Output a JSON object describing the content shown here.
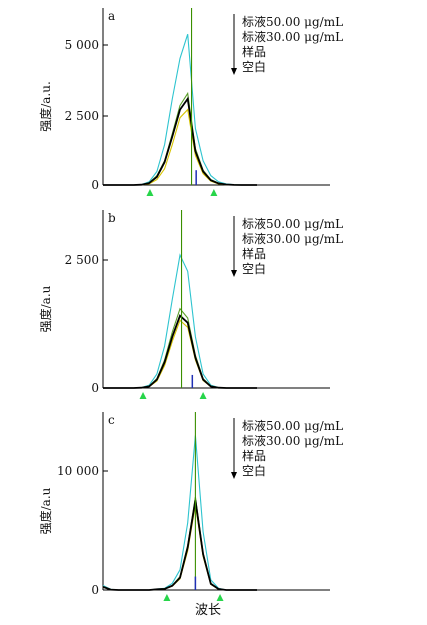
{
  "colors": {
    "standard_50": "#2ec4cf",
    "standard_30": "#5b9e2a",
    "sample": "#000000",
    "blank": "#d6c400",
    "peak_line": "#3a8f00",
    "peak_tick": "#1f2fb5",
    "marker": "#27d54a"
  },
  "xlabel": "波长",
  "chart_data": [
    {
      "type": "line",
      "panel_label": "a",
      "ylabel": "强度/a.u.",
      "yticks": [
        "5 000",
        "2 500",
        "0"
      ],
      "ylim": [
        0,
        6200
      ],
      "legend": {
        "entries": [
          "标液50.00 μg/mL",
          "标液30.00 μg/mL",
          "样品",
          "空白"
        ],
        "placement": "top-right",
        "arrow": "down"
      },
      "x": [
        0,
        1,
        2,
        3,
        4,
        5,
        6,
        7,
        8,
        9,
        10,
        11,
        12,
        13,
        14,
        15,
        16,
        17,
        18,
        19,
        20
      ],
      "series": [
        {
          "key": "standard_50",
          "values": [
            0,
            0,
            0,
            0,
            0,
            20,
            120,
            500,
            1500,
            3200,
            4700,
            5600,
            2100,
            900,
            350,
            120,
            40,
            10,
            0,
            0,
            0
          ]
        },
        {
          "key": "standard_30",
          "values": [
            0,
            0,
            0,
            0,
            0,
            15,
            80,
            350,
            900,
            1900,
            2950,
            3400,
            1350,
            550,
            200,
            70,
            20,
            5,
            0,
            0,
            0
          ]
        },
        {
          "key": "sample",
          "values": [
            0,
            0,
            0,
            0,
            0,
            12,
            70,
            300,
            850,
            1800,
            2800,
            3200,
            1250,
            500,
            180,
            60,
            18,
            4,
            0,
            0,
            0
          ]
        },
        {
          "key": "blank",
          "values": [
            0,
            0,
            0,
            0,
            0,
            8,
            40,
            200,
            600,
            1500,
            2500,
            2800,
            1100,
            420,
            140,
            40,
            10,
            2,
            0,
            0,
            0
          ]
        }
      ],
      "peak_x": 11.5,
      "tick_x": 12.1,
      "tick_value": 550,
      "markers_x": [
        6.1,
        14.4
      ]
    },
    {
      "type": "line",
      "panel_label": "b",
      "ylabel": "强度/a.u",
      "yticks": [
        "2 500",
        "0"
      ],
      "ylim": [
        0,
        3600
      ],
      "legend": {
        "entries": [
          "标液50.00 μg/mL",
          "标液30.00 μg/mL",
          "样品",
          "空白"
        ],
        "placement": "top-right",
        "arrow": "down"
      },
      "x": [
        0,
        1,
        2,
        3,
        4,
        5,
        6,
        7,
        8,
        9,
        10,
        11,
        12,
        13,
        14,
        15,
        16,
        17,
        18,
        19,
        20
      ],
      "series": [
        {
          "key": "standard_50",
          "values": [
            0,
            0,
            0,
            0,
            0,
            10,
            60,
            300,
            900,
            1900,
            2850,
            2500,
            1100,
            300,
            60,
            10,
            0,
            0,
            0,
            0,
            0
          ]
        },
        {
          "key": "standard_30",
          "values": [
            0,
            0,
            0,
            0,
            0,
            8,
            40,
            200,
            600,
            1200,
            1700,
            1500,
            700,
            200,
            40,
            8,
            0,
            0,
            0,
            0,
            0
          ]
        },
        {
          "key": "sample",
          "values": [
            0,
            0,
            0,
            0,
            0,
            6,
            35,
            180,
            550,
            1100,
            1550,
            1400,
            650,
            180,
            35,
            6,
            0,
            0,
            0,
            0,
            0
          ]
        },
        {
          "key": "blank",
          "values": [
            0,
            0,
            0,
            0,
            0,
            5,
            30,
            150,
            480,
            1000,
            1450,
            1300,
            600,
            160,
            30,
            5,
            0,
            0,
            0,
            0,
            0
          ]
        }
      ],
      "peak_x": 10.2,
      "tick_x": 11.6,
      "tick_value": 280,
      "markers_x": [
        5.2,
        13.0
      ]
    },
    {
      "type": "line",
      "panel_label": "c",
      "ylabel": "强度/a.u",
      "yticks": [
        "10 000",
        "0"
      ],
      "ylim": [
        0,
        15000
      ],
      "legend": {
        "entries": [
          "标液50.00 μg/mL",
          "标液30.00 μg/mL",
          "样品",
          "空白"
        ],
        "placement": "top-right",
        "arrow": "down"
      },
      "x": [
        0,
        1,
        2,
        3,
        4,
        5,
        6,
        7,
        8,
        9,
        10,
        11,
        12,
        13,
        14,
        15,
        16,
        17,
        18,
        19,
        20
      ],
      "series": [
        {
          "key": "standard_50",
          "values": [
            400,
            60,
            0,
            0,
            0,
            0,
            0,
            80,
            150,
            600,
            1800,
            6000,
            13800,
            5200,
            900,
            150,
            0,
            0,
            0,
            0,
            0
          ]
        },
        {
          "key": "standard_30",
          "values": [
            300,
            50,
            0,
            0,
            0,
            0,
            0,
            60,
            120,
            400,
            1200,
            4000,
            8300,
            3300,
            600,
            100,
            0,
            0,
            0,
            0,
            0
          ]
        },
        {
          "key": "sample",
          "values": [
            280,
            40,
            0,
            0,
            0,
            0,
            0,
            60,
            100,
            380,
            1100,
            3800,
            8000,
            3200,
            550,
            90,
            0,
            0,
            0,
            0,
            0
          ]
        },
        {
          "key": "blank",
          "values": [
            250,
            40,
            0,
            0,
            0,
            0,
            0,
            50,
            90,
            350,
            1000,
            3500,
            7600,
            3000,
            500,
            80,
            0,
            0,
            0,
            0,
            0
          ]
        }
      ],
      "peak_x": 12.0,
      "tick_x": 12.0,
      "tick_value": 1200,
      "markers_x": [
        8.3,
        15.2
      ]
    }
  ]
}
